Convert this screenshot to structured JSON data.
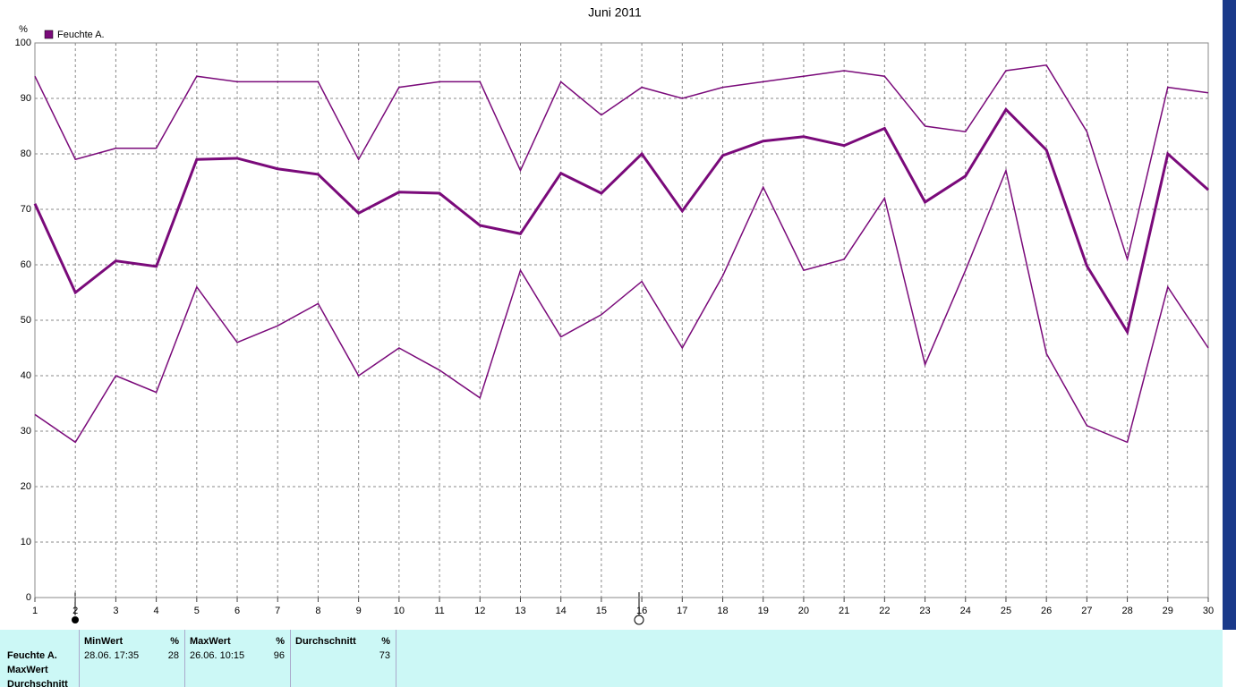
{
  "chart_data": {
    "type": "line",
    "title": "Juni 2011",
    "y_label": "%",
    "x": [
      1,
      2,
      3,
      4,
      5,
      6,
      7,
      8,
      9,
      10,
      11,
      12,
      13,
      14,
      15,
      16,
      17,
      18,
      19,
      20,
      21,
      22,
      23,
      24,
      25,
      26,
      27,
      28,
      29,
      30
    ],
    "xlim": [
      1,
      30
    ],
    "xticks": [
      1,
      2,
      3,
      4,
      5,
      6,
      7,
      8,
      9,
      10,
      11,
      12,
      13,
      14,
      15,
      16,
      17,
      18,
      19,
      20,
      21,
      22,
      23,
      24,
      25,
      26,
      27,
      28,
      29,
      30
    ],
    "ylim": [
      0,
      100
    ],
    "yticks": [
      0,
      10,
      20,
      30,
      40,
      50,
      60,
      70,
      80,
      90,
      100
    ],
    "grid": true,
    "legend": "top-left",
    "series": [
      {
        "name": "Feuchte A.",
        "color": "#7a0a7a",
        "values": [
          71,
          55,
          60.7,
          59.7,
          79,
          79.2,
          77.3,
          76.3,
          69.3,
          73.1,
          72.9,
          67.1,
          65.6,
          76.5,
          72.9,
          80,
          69.7,
          79.7,
          82.3,
          83.1,
          81.5,
          84.6,
          71.3,
          76,
          88,
          80.7,
          59.8,
          47.9,
          80,
          73.5
        ]
      },
      {
        "color": "#7a0a7a",
        "values": [
          94,
          79,
          81,
          81,
          94,
          93,
          93,
          93,
          79,
          92,
          93,
          93,
          77,
          93,
          87,
          92,
          90,
          92,
          93,
          94,
          95,
          94,
          85,
          84,
          95,
          96,
          84,
          61,
          92,
          91
        ]
      },
      {
        "color": "#7a0a7a",
        "values": [
          33,
          28,
          40,
          37,
          56,
          46,
          49,
          53,
          40,
          45,
          41,
          36,
          59,
          47,
          51,
          57,
          45,
          58,
          74,
          59,
          61,
          72,
          42,
          59,
          77,
          44,
          31,
          28,
          56,
          45
        ]
      }
    ]
  },
  "stats_panel": {
    "row_labels": [
      "Feuchte A.",
      "MaxWert",
      "Durchschnitt"
    ],
    "columns": [
      {
        "header": "MinWert",
        "unit": "%",
        "time": "28.06. 17:35",
        "value": 28
      },
      {
        "header": "MaxWert",
        "unit": "%",
        "time": "26.06. 10:15",
        "value": 96
      },
      {
        "header": "Durchschnitt",
        "unit": "%",
        "value": 73
      }
    ]
  }
}
